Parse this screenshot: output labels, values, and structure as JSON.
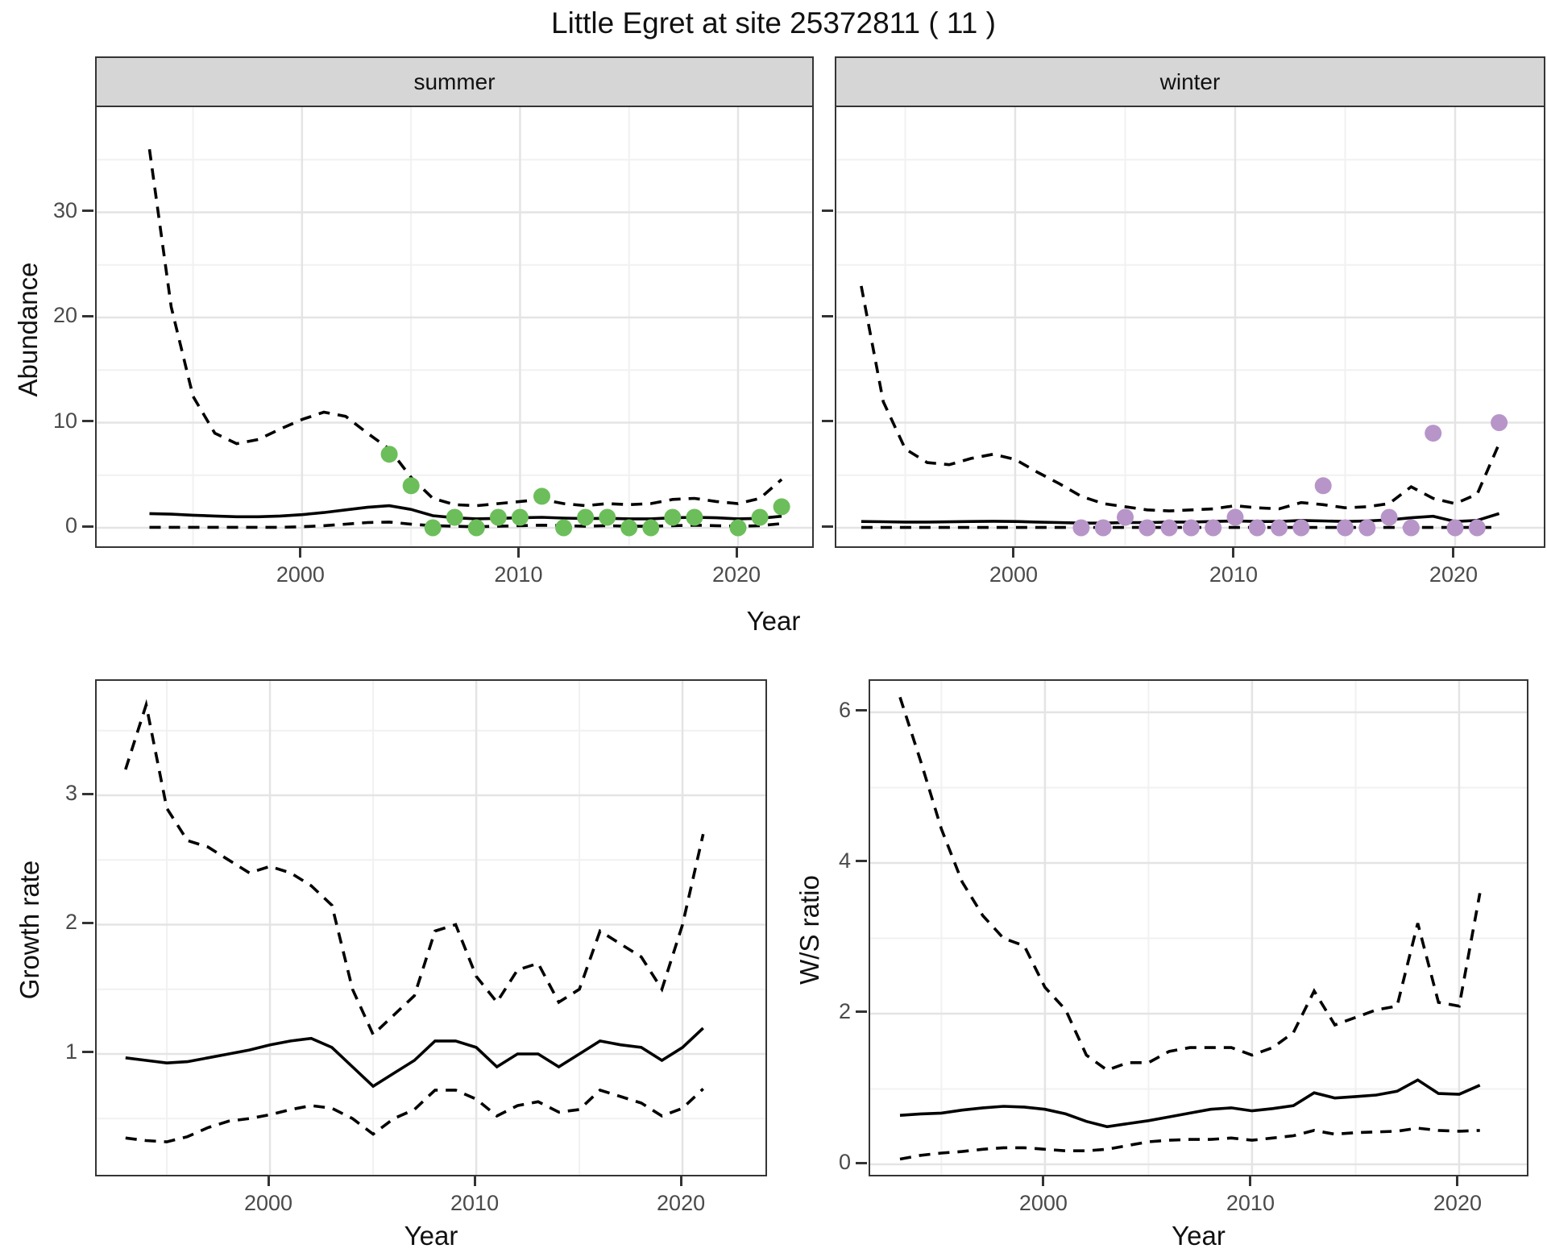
{
  "title": "Little Egret at site 25372811 ( 11 )",
  "colors": {
    "summer_point": "#6cbe5a",
    "winter_point": "#b795c9",
    "line": "#000000",
    "grid_major": "#e4e4e4",
    "grid_minor": "#f1f1f1",
    "strip_bg": "#d6d6d6",
    "axis_text": "#4a4a4a",
    "panel_border": "#353535"
  },
  "facets": {
    "summer_label": "summer",
    "winter_label": "winter"
  },
  "axis_titles": {
    "abundance": "Abundance",
    "year_top": "Year",
    "growth_rate": "Growth rate",
    "ws_ratio": "W/S ratio",
    "year_bottom_left": "Year",
    "year_bottom_right": "Year"
  },
  "chart_data": [
    {
      "id": "summer",
      "type": "line",
      "facet_label": "summer",
      "ylabel": "Abundance",
      "xlabel": "Year",
      "xlim": [
        1990.58,
        2023.4
      ],
      "ylim": [
        -1.76,
        40.0
      ],
      "xticks": [
        2000,
        2010,
        2020
      ],
      "xminor": [
        1995,
        2005,
        2015
      ],
      "yticks": [
        0,
        10,
        20,
        30
      ],
      "yminor": [
        5,
        15,
        25,
        35
      ],
      "show_ytick_labels": true,
      "show_xtick_labels": true,
      "x": [
        1993,
        1994,
        1995,
        1996,
        1997,
        1998,
        1999,
        2000,
        2001,
        2002,
        2003,
        2004,
        2005,
        2006,
        2007,
        2008,
        2009,
        2010,
        2011,
        2012,
        2013,
        2014,
        2015,
        2016,
        2017,
        2018,
        2019,
        2020,
        2021,
        2022
      ],
      "series": [
        {
          "name": "upper_ci",
          "style": "dashed",
          "values": [
            36,
            21,
            12.5,
            9,
            8,
            8.4,
            9.4,
            10.3,
            11,
            10.6,
            9,
            7.5,
            4.8,
            2.8,
            2.2,
            2.1,
            2.3,
            2.5,
            2.7,
            2.3,
            2.1,
            2.3,
            2.2,
            2.3,
            2.7,
            2.8,
            2.5,
            2.3,
            2.8,
            4.6
          ]
        },
        {
          "name": "fitted",
          "style": "solid",
          "values": [
            1.35,
            1.3,
            1.2,
            1.12,
            1.05,
            1.05,
            1.12,
            1.25,
            1.45,
            1.7,
            1.95,
            2.1,
            1.75,
            1.15,
            0.95,
            0.85,
            0.9,
            0.95,
            1.0,
            0.92,
            0.88,
            0.9,
            0.85,
            0.85,
            0.95,
            1.0,
            0.95,
            0.85,
            0.9,
            1.1
          ]
        },
        {
          "name": "lower_ci",
          "style": "dashed",
          "values": [
            0.05,
            0.05,
            0.05,
            0.05,
            0.05,
            0.05,
            0.05,
            0.1,
            0.2,
            0.35,
            0.5,
            0.55,
            0.35,
            0.2,
            0.15,
            0.1,
            0.15,
            0.2,
            0.25,
            0.2,
            0.15,
            0.2,
            0.15,
            0.15,
            0.2,
            0.25,
            0.2,
            0.15,
            0.2,
            0.4
          ]
        }
      ],
      "points": {
        "name": "observed_counts",
        "color_key": "summer_point",
        "x": [
          2004,
          2005,
          2006,
          2007,
          2008,
          2009,
          2010,
          2011,
          2012,
          2013,
          2014,
          2015,
          2016,
          2017,
          2018,
          2020,
          2021,
          2022
        ],
        "y": [
          7,
          4,
          0,
          1,
          0,
          1,
          1,
          3,
          0,
          1,
          1,
          0,
          0,
          1,
          1,
          0,
          1,
          2
        ]
      }
    },
    {
      "id": "winter",
      "type": "line",
      "facet_label": "winter",
      "ylabel": "Abundance",
      "xlabel": "Year",
      "xlim": [
        1991.87,
        2024.03
      ],
      "ylim": [
        -1.76,
        40.0
      ],
      "xticks": [
        2000,
        2010,
        2020
      ],
      "xminor": [
        1995,
        2005,
        2015
      ],
      "yticks": [
        0,
        10,
        20,
        30
      ],
      "yminor": [
        5,
        15,
        25,
        35
      ],
      "show_ytick_labels": false,
      "show_xtick_labels": true,
      "x": [
        1993,
        1994,
        1995,
        1996,
        1997,
        1998,
        1999,
        2000,
        2001,
        2002,
        2003,
        2004,
        2005,
        2006,
        2007,
        2008,
        2009,
        2010,
        2011,
        2012,
        2013,
        2014,
        2015,
        2016,
        2017,
        2018,
        2019,
        2020,
        2021,
        2022
      ],
      "series": [
        {
          "name": "upper_ci",
          "style": "dashed",
          "values": [
            23,
            12,
            7.5,
            6.2,
            6.0,
            6.6,
            7.0,
            6.5,
            5.3,
            4.2,
            3.0,
            2.3,
            2.0,
            1.7,
            1.6,
            1.7,
            1.8,
            2.1,
            1.9,
            1.8,
            2.4,
            2.2,
            1.9,
            2.0,
            2.3,
            3.9,
            2.8,
            2.3,
            3.2,
            8.0
          ]
        },
        {
          "name": "fitted",
          "style": "solid",
          "values": [
            0.6,
            0.58,
            0.55,
            0.55,
            0.57,
            0.6,
            0.62,
            0.6,
            0.55,
            0.5,
            0.45,
            0.45,
            0.5,
            0.5,
            0.55,
            0.55,
            0.6,
            0.65,
            0.6,
            0.6,
            0.7,
            0.65,
            0.6,
            0.65,
            0.75,
            0.95,
            1.1,
            0.6,
            0.7,
            1.35
          ]
        },
        {
          "name": "lower_ci",
          "style": "dashed",
          "values": [
            0.03,
            0.03,
            0.03,
            0.03,
            0.03,
            0.03,
            0.03,
            0.03,
            0.03,
            0.03,
            0.03,
            0.03,
            0.03,
            0.03,
            0.03,
            0.03,
            0.03,
            0.03,
            0.03,
            0.03,
            0.03,
            0.03,
            0.03,
            0.03,
            0.03,
            0.03,
            0.03,
            0.03,
            0.03,
            0.03
          ]
        }
      ],
      "points": {
        "name": "observed_counts",
        "color_key": "winter_point",
        "x": [
          2003,
          2004,
          2005,
          2006,
          2007,
          2008,
          2009,
          2010,
          2011,
          2012,
          2013,
          2014,
          2015,
          2016,
          2017,
          2018,
          2019,
          2020,
          2021,
          2022
        ],
        "y": [
          0,
          0,
          1,
          0,
          0,
          0,
          0,
          1,
          0,
          0,
          0,
          4,
          0,
          0,
          1,
          0,
          9,
          0,
          0,
          10
        ]
      }
    },
    {
      "id": "growth",
      "type": "line",
      "facet_label": null,
      "ylabel": "Growth rate",
      "xlabel": "Year",
      "xlim": [
        1991.6,
        2024.02
      ],
      "ylim": [
        0.065,
        3.885
      ],
      "xticks": [
        2000,
        2010,
        2020
      ],
      "xminor": [
        1995,
        2005,
        2015
      ],
      "yticks": [
        1,
        2,
        3
      ],
      "yminor": [
        0.5,
        1.5,
        2.5,
        3.5
      ],
      "show_ytick_labels": true,
      "show_xtick_labels": true,
      "x": [
        1993,
        1994,
        1995,
        1996,
        1997,
        1998,
        1999,
        2000,
        2001,
        2002,
        2003,
        2004,
        2005,
        2006,
        2007,
        2008,
        2009,
        2010,
        2011,
        2012,
        2013,
        2014,
        2015,
        2016,
        2017,
        2018,
        2019,
        2020,
        2021
      ],
      "series": [
        {
          "name": "upper_ci",
          "style": "dashed",
          "values": [
            3.2,
            3.7,
            2.9,
            2.65,
            2.6,
            2.5,
            2.4,
            2.45,
            2.4,
            2.3,
            2.15,
            1.5,
            1.15,
            1.3,
            1.45,
            1.95,
            2.0,
            1.6,
            1.4,
            1.65,
            1.7,
            1.4,
            1.5,
            1.95,
            1.85,
            1.75,
            1.5,
            2.0,
            2.7
          ]
        },
        {
          "name": "fitted",
          "style": "solid",
          "values": [
            0.97,
            0.95,
            0.93,
            0.94,
            0.97,
            1.0,
            1.03,
            1.07,
            1.1,
            1.12,
            1.05,
            0.9,
            0.75,
            0.85,
            0.95,
            1.1,
            1.1,
            1.05,
            0.9,
            1.0,
            1.0,
            0.9,
            1.0,
            1.1,
            1.07,
            1.05,
            0.95,
            1.05,
            1.2
          ]
        },
        {
          "name": "lower_ci",
          "style": "dashed",
          "values": [
            0.35,
            0.33,
            0.32,
            0.36,
            0.43,
            0.48,
            0.5,
            0.53,
            0.57,
            0.6,
            0.58,
            0.5,
            0.38,
            0.5,
            0.57,
            0.72,
            0.72,
            0.65,
            0.52,
            0.6,
            0.63,
            0.55,
            0.57,
            0.72,
            0.67,
            0.62,
            0.52,
            0.58,
            0.73
          ]
        }
      ],
      "points": null
    },
    {
      "id": "ws",
      "type": "line",
      "facet_label": null,
      "ylabel": "W/S ratio",
      "xlabel": "Year",
      "xlim": [
        1991.56,
        2023.27
      ],
      "ylim": [
        -0.139,
        6.417
      ],
      "xticks": [
        2000,
        2010,
        2020
      ],
      "xminor": [
        1995,
        2005,
        2015
      ],
      "yticks": [
        0,
        2,
        4,
        6
      ],
      "yminor": [
        1,
        3,
        5
      ],
      "show_ytick_labels": true,
      "show_xtick_labels": true,
      "x": [
        1993,
        1994,
        1995,
        1996,
        1997,
        1998,
        1999,
        2000,
        2001,
        2002,
        2003,
        2004,
        2005,
        2006,
        2007,
        2008,
        2009,
        2010,
        2011,
        2012,
        2013,
        2014,
        2015,
        2016,
        2017,
        2018,
        2019,
        2020,
        2021
      ],
      "series": [
        {
          "name": "upper_ci",
          "style": "dashed",
          "values": [
            6.2,
            5.35,
            4.45,
            3.75,
            3.3,
            3.0,
            2.9,
            2.35,
            2.05,
            1.45,
            1.25,
            1.35,
            1.35,
            1.5,
            1.55,
            1.55,
            1.55,
            1.45,
            1.55,
            1.75,
            2.3,
            1.85,
            1.95,
            2.05,
            2.1,
            3.2,
            2.15,
            2.1,
            3.6
          ]
        },
        {
          "name": "fitted",
          "style": "solid",
          "values": [
            0.65,
            0.67,
            0.68,
            0.72,
            0.75,
            0.77,
            0.76,
            0.73,
            0.67,
            0.57,
            0.5,
            0.54,
            0.58,
            0.63,
            0.68,
            0.73,
            0.75,
            0.71,
            0.74,
            0.78,
            0.95,
            0.88,
            0.9,
            0.92,
            0.97,
            1.12,
            0.94,
            0.93,
            1.05
          ]
        },
        {
          "name": "lower_ci",
          "style": "dashed",
          "values": [
            0.07,
            0.12,
            0.15,
            0.17,
            0.2,
            0.22,
            0.22,
            0.2,
            0.18,
            0.18,
            0.2,
            0.25,
            0.3,
            0.32,
            0.33,
            0.33,
            0.35,
            0.32,
            0.35,
            0.38,
            0.45,
            0.4,
            0.42,
            0.43,
            0.44,
            0.48,
            0.45,
            0.44,
            0.45
          ]
        }
      ],
      "points": null
    }
  ]
}
